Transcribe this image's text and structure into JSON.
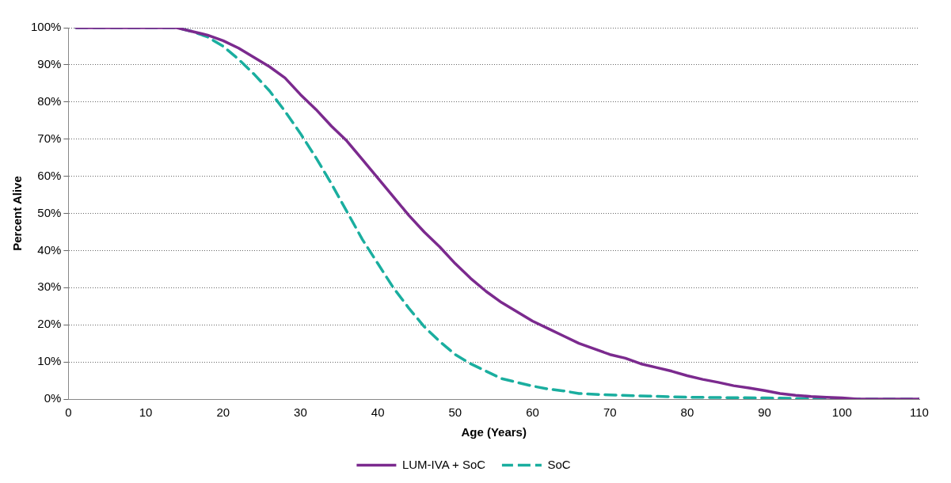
{
  "chart_data": {
    "type": "line",
    "xlabel": "Age (Years)",
    "ylabel": "Percent Alive",
    "xlim": [
      0,
      110
    ],
    "xticks": [
      0,
      10,
      20,
      30,
      40,
      50,
      60,
      70,
      80,
      90,
      100,
      110
    ],
    "ylim": [
      0,
      100
    ],
    "yticks": [
      {
        "value": 0,
        "label": "0%"
      },
      {
        "value": 10,
        "label": "10%"
      },
      {
        "value": 20,
        "label": "20%"
      },
      {
        "value": 30,
        "label": "30%"
      },
      {
        "value": 40,
        "label": "40%"
      },
      {
        "value": 50,
        "label": "50%"
      },
      {
        "value": 60,
        "label": "60%"
      },
      {
        "value": 70,
        "label": "70%"
      },
      {
        "value": 80,
        "label": "80%"
      },
      {
        "value": 90,
        "label": "90%"
      },
      {
        "value": 100,
        "label": "100%"
      }
    ],
    "grid": "y",
    "legend": "bottom",
    "marker": "none",
    "series": [
      {
        "name": "LUM-IVA + SoC",
        "color": "#7b2a8e",
        "line_style": "solid",
        "x": [
          1,
          14,
          16,
          18,
          20,
          22,
          24,
          26,
          28,
          30,
          32,
          34,
          36,
          38,
          40,
          42,
          44,
          46,
          48,
          50,
          52,
          54,
          56,
          58,
          60,
          62,
          64,
          66,
          68,
          70,
          72,
          74,
          76,
          78,
          80,
          82,
          84,
          86,
          88,
          90,
          92,
          94,
          96,
          98,
          100,
          102,
          110
        ],
        "values": [
          100,
          100,
          99,
          98,
          96.5,
          94.5,
          92,
          89.5,
          86.5,
          82,
          78,
          73.5,
          69.5,
          64.5,
          59.5,
          54.5,
          49.5,
          45,
          41,
          36.5,
          32.5,
          29,
          26,
          23.5,
          21,
          19,
          17,
          15,
          13.5,
          12,
          11,
          9.5,
          8.5,
          7.5,
          6.3,
          5.3,
          4.5,
          3.6,
          3,
          2.3,
          1.5,
          1,
          0.7,
          0.5,
          0.3,
          0,
          0
        ]
      },
      {
        "name": "SoC",
        "color": "#1aae9f",
        "line_style": "dashed",
        "x": [
          1,
          14,
          16,
          18,
          20,
          22,
          24,
          26,
          28,
          30,
          32,
          34,
          36,
          38,
          40,
          42,
          44,
          46,
          48,
          50,
          52,
          54,
          56,
          58,
          60,
          62,
          64,
          66,
          70,
          75,
          80,
          90,
          100,
          110
        ],
        "values": [
          100,
          100,
          99,
          97.5,
          95,
          91.5,
          87.5,
          83,
          77.5,
          71.5,
          65,
          58,
          50.5,
          43,
          36.5,
          30,
          24.5,
          19.5,
          15.5,
          12,
          9.5,
          7.5,
          5.5,
          4.5,
          3.5,
          2.7,
          2.2,
          1.5,
          1.1,
          0.8,
          0.5,
          0.3,
          0,
          0
        ]
      }
    ]
  }
}
